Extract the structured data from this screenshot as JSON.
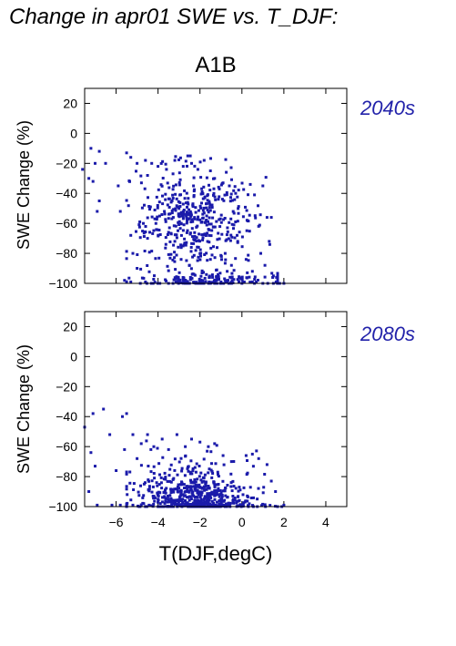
{
  "title": "Change in apr01 SWE vs. T_DJF:",
  "scenario": "A1B",
  "colors": {
    "points": "#1a1aaa",
    "panel_label": "#2222aa"
  },
  "chart_data": [
    {
      "type": "scatter",
      "panel_label": "2040s",
      "xlabel": "T(DJF,degC)",
      "ylabel": "SWE Change (%)",
      "xlim": [
        -7.5,
        5
      ],
      "ylim": [
        -100,
        30
      ],
      "xticks": [
        -6,
        -4,
        -2,
        0,
        2,
        4
      ],
      "yticks": [
        -100,
        -80,
        -60,
        -40,
        -20,
        0,
        20
      ],
      "xtick_labels_visible": false,
      "points": [
        [
          -7.2,
          -10
        ],
        [
          -6.8,
          -12
        ],
        [
          -7.0,
          -20
        ],
        [
          -7.6,
          -24
        ],
        [
          -7.3,
          -30
        ],
        [
          -7.1,
          -32
        ],
        [
          -6.5,
          -20
        ],
        [
          -6.8,
          -45
        ],
        [
          -6.9,
          -52
        ],
        [
          -5.9,
          -35
        ],
        [
          -5.8,
          -52
        ],
        [
          -5.5,
          -13
        ],
        [
          -5.3,
          -16
        ],
        [
          -5.0,
          -20
        ],
        [
          -4.6,
          -18
        ],
        [
          -4.3,
          -20
        ],
        [
          -4.5,
          -28
        ],
        [
          -4.0,
          -22
        ],
        [
          -3.6,
          -24
        ],
        [
          -3.2,
          -18
        ],
        [
          -2.8,
          -22
        ],
        [
          -2.4,
          -20
        ],
        [
          -2.1,
          -24
        ],
        [
          -1.8,
          -18
        ],
        [
          -1.5,
          -25
        ],
        [
          -1.3,
          -30
        ],
        [
          -0.9,
          -33
        ],
        [
          -0.6,
          -35
        ],
        [
          -0.3,
          -40
        ],
        [
          0.4,
          -34
        ],
        [
          0.6,
          -41
        ],
        [
          1.0,
          -35
        ],
        [
          1.2,
          -56
        ],
        [
          1.3,
          -72
        ],
        [
          1.4,
          -56
        ],
        [
          1.5,
          -95
        ],
        [
          -5.3,
          -68
        ],
        [
          -5.2,
          -80
        ],
        [
          -5.0,
          -90
        ],
        [
          -4.7,
          -60
        ],
        [
          -4.5,
          -70
        ],
        [
          -4.1,
          -60
        ],
        [
          -3.7,
          -52
        ],
        [
          -3.5,
          -66
        ],
        [
          -3.2,
          -72
        ],
        [
          -2.9,
          -84
        ],
        [
          -2.5,
          -88
        ],
        [
          -2.2,
          -78
        ],
        [
          -1.9,
          -93
        ],
        [
          -1.5,
          -84
        ],
        [
          -1.2,
          -91
        ],
        [
          -0.8,
          -80
        ],
        [
          -0.5,
          -88
        ],
        [
          -0.2,
          -72
        ],
        [
          0.2,
          -84
        ],
        [
          0.5,
          -92
        ],
        [
          0.8,
          -62
        ],
        [
          0.9,
          -80
        ],
        [
          1.1,
          -88
        ],
        [
          1.7,
          -95
        ],
        [
          -5.6,
          -98
        ],
        [
          -5.3,
          -99
        ],
        [
          -4.6,
          -99
        ],
        [
          -4.0,
          -100
        ],
        [
          -3.5,
          -100
        ],
        [
          -3.0,
          -99
        ],
        [
          -2.5,
          -100
        ],
        [
          -2.0,
          -100
        ],
        [
          -1.5,
          -100
        ],
        [
          -1.0,
          -99
        ],
        [
          -0.5,
          -100
        ],
        [
          0.0,
          -100
        ],
        [
          0.5,
          -99
        ],
        [
          1.0,
          -100
        ],
        [
          1.5,
          -100
        ],
        [
          1.8,
          -100
        ],
        [
          2.0,
          -100
        ]
      ],
      "clusters": [
        {
          "center": [
            -2.2,
            -62
          ],
          "spread": [
            1.3,
            17
          ],
          "count": 380
        },
        {
          "center": [
            -2.6,
            -40
          ],
          "spread": [
            1.4,
            14
          ],
          "count": 70
        },
        {
          "center": [
            -1.5,
            -98
          ],
          "spread": [
            1.6,
            2.2
          ],
          "count": 140
        }
      ],
      "cluster_xrange": [
        -5.5,
        1.7
      ],
      "cluster_yrange": [
        -100,
        -15
      ]
    },
    {
      "type": "scatter",
      "panel_label": "2080s",
      "xlabel": "T(DJF,degC)",
      "ylabel": "SWE Change (%)",
      "xlim": [
        -7.5,
        5
      ],
      "ylim": [
        -100,
        30
      ],
      "xticks": [
        -6,
        -4,
        -2,
        0,
        2,
        4
      ],
      "yticks": [
        -100,
        -80,
        -60,
        -40,
        -20,
        0,
        20
      ],
      "xtick_labels_visible": true,
      "points": [
        [
          -6.6,
          -35
        ],
        [
          -7.1,
          -38
        ],
        [
          -7.5,
          -47
        ],
        [
          -6.3,
          -52
        ],
        [
          -7.2,
          -64
        ],
        [
          -7.0,
          -73
        ],
        [
          -7.3,
          -90
        ],
        [
          -6.0,
          -76
        ],
        [
          -5.7,
          -40
        ],
        [
          -5.5,
          -38
        ],
        [
          -5.2,
          -52
        ],
        [
          -5.6,
          -62
        ],
        [
          -5.0,
          -68
        ],
        [
          -4.8,
          -58
        ],
        [
          -4.5,
          -52
        ],
        [
          -4.2,
          -60
        ],
        [
          -3.8,
          -55
        ],
        [
          -3.5,
          -62
        ],
        [
          -3.1,
          -52
        ],
        [
          -2.7,
          -60
        ],
        [
          -2.4,
          -55
        ],
        [
          -2.0,
          -57
        ],
        [
          -1.6,
          -60
        ],
        [
          -1.3,
          -58
        ],
        [
          -0.9,
          -66
        ],
        [
          -0.5,
          -70
        ],
        [
          0.2,
          -66
        ],
        [
          0.5,
          -65
        ],
        [
          0.8,
          -68
        ],
        [
          1.2,
          -72
        ],
        [
          1.4,
          -83
        ],
        [
          1.6,
          -90
        ],
        [
          -6.9,
          -99
        ],
        [
          -6.2,
          -99
        ],
        [
          -5.8,
          -99
        ],
        [
          -5.5,
          -100
        ],
        [
          -5.2,
          -99
        ],
        [
          -4.9,
          -100
        ],
        [
          -4.6,
          -100
        ],
        [
          1.7,
          -100
        ],
        [
          1.9,
          -100
        ],
        [
          2.0,
          -99
        ]
      ],
      "clusters": [
        {
          "center": [
            -2.2,
            -92
          ],
          "spread": [
            1.3,
            5
          ],
          "count": 300
        },
        {
          "center": [
            -2.5,
            -80
          ],
          "spread": [
            1.4,
            9
          ],
          "count": 130
        },
        {
          "center": [
            -1.9,
            -99
          ],
          "spread": [
            1.7,
            1.4
          ],
          "count": 150
        }
      ],
      "cluster_xrange": [
        -5.5,
        1.9
      ],
      "cluster_yrange": [
        -100,
        -45
      ]
    }
  ]
}
